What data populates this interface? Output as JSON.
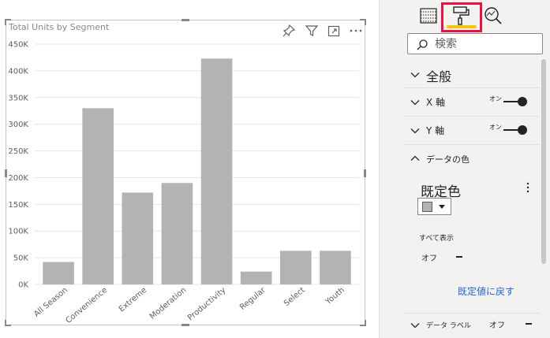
{
  "chart": {
    "title": "Total Units by Segment"
  },
  "chart_data": {
    "type": "bar",
    "title": "Total Units by Segment",
    "categories": [
      "All Season",
      "Convenience",
      "Extreme",
      "Moderation",
      "Productivity",
      "Regular",
      "Select",
      "Youth"
    ],
    "values": [
      42000,
      330000,
      172000,
      190000,
      423000,
      24000,
      63000,
      63000
    ],
    "ylim": [
      0,
      450000
    ],
    "yticks": [
      "0K",
      "50K",
      "100K",
      "150K",
      "200K",
      "250K",
      "300K",
      "350K",
      "400K",
      "450K"
    ],
    "ytick_values": [
      0,
      50000,
      100000,
      150000,
      200000,
      250000,
      300000,
      350000,
      400000,
      450000
    ],
    "grid": true,
    "bar_color": "#b3b3b3",
    "grid_color": "#e6e6e6"
  },
  "visual_icons": [
    "pin-icon",
    "filter-icon",
    "focus-mode-icon",
    "more-options-icon"
  ],
  "pane": {
    "tabs": [
      {
        "name": "fields-tab",
        "icon": "fields-grid-icon"
      },
      {
        "name": "format-tab",
        "icon": "paint-roller-icon",
        "active": true
      },
      {
        "name": "analytics-tab",
        "icon": "magnifier-chart-icon"
      }
    ],
    "search_placeholder": "検索",
    "sections": {
      "general": "全般",
      "x_axis": "X 軸",
      "y_axis": "Y 軸",
      "data_colors": "データの色",
      "data_labels": "データ ラベル"
    },
    "toggle_on": "オン",
    "default_color": "既定色",
    "show_all": "すべて表示",
    "off": "オフ",
    "revert": "既定値に戻す",
    "accent_color": "#e8113f",
    "active_underline_color": "#f2c811",
    "link_color": "#2564cf"
  }
}
